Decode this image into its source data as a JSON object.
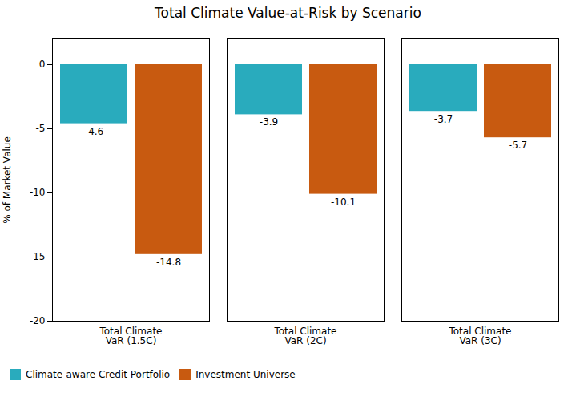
{
  "chart_data": {
    "type": "bar",
    "title": "Total Climate Value-at-Risk by Scenario",
    "categories": [
      "Total Climate\nVaR (1.5C)",
      "Total Climate\nVaR (2C)",
      "Total Climate\nVaR (3C)"
    ],
    "series": [
      {
        "name": "Climate-aware Credit Portfolio",
        "color": "#29ABBD",
        "values": [
          -4.6,
          -3.9,
          -3.7
        ]
      },
      {
        "name": "Investment Universe",
        "color": "#C85A10",
        "values": [
          -14.8,
          -10.1,
          -5.7
        ]
      }
    ],
    "ylabel": "% of Market Value",
    "ylim": [
      -20,
      2.0
    ],
    "yticks": [
      0,
      -5,
      -10,
      -15,
      -20
    ],
    "grid": false,
    "data_labels": true,
    "legend": "lower left"
  }
}
